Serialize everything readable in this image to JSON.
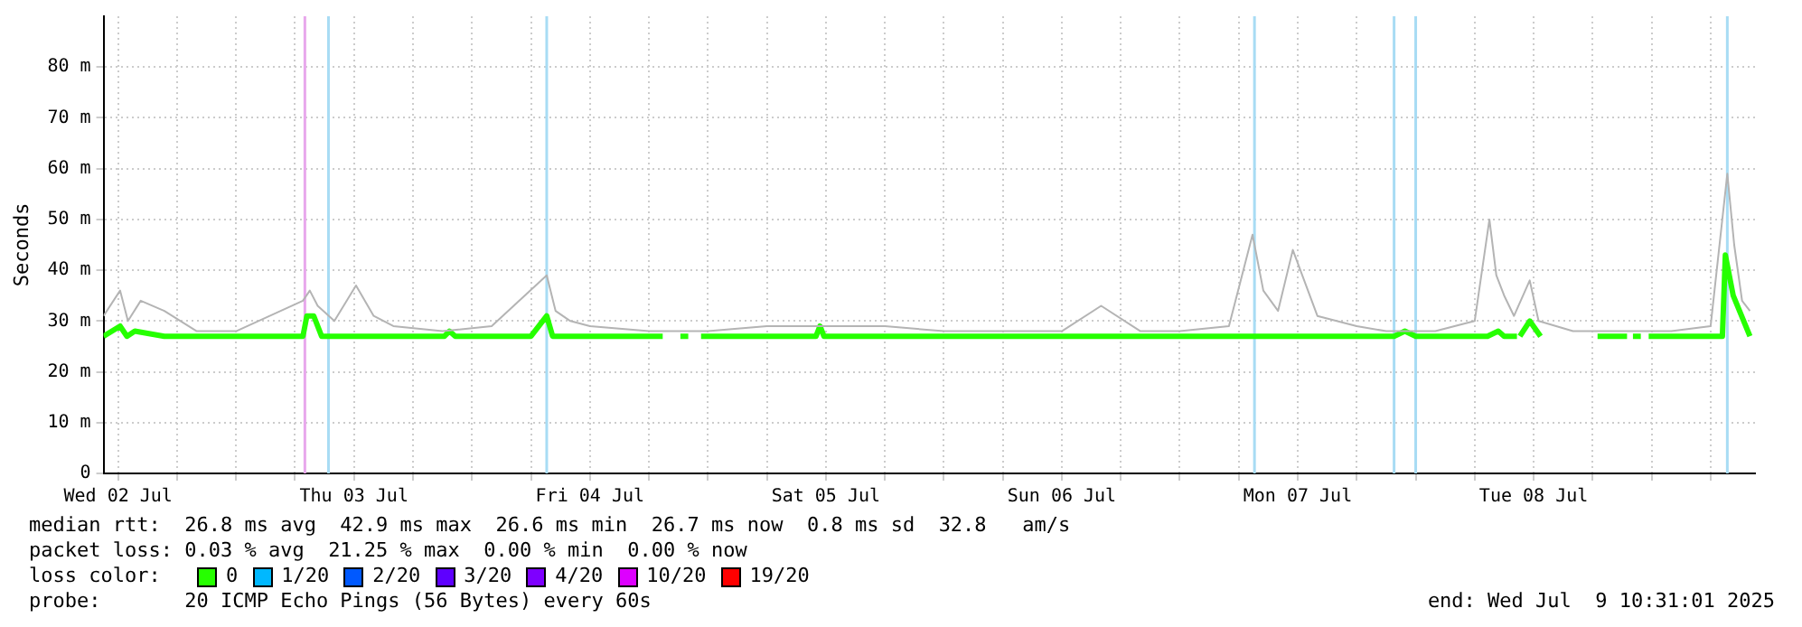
{
  "chart_data": {
    "type": "line",
    "ylabel": "Seconds",
    "xlim": [
      "2025-07-02T10:31",
      "2025-07-09T10:31"
    ],
    "ylim": [
      0,
      90
    ],
    "xticks": [
      {
        "value": "2025-07-02T12:00",
        "label": "Wed 02 Jul"
      },
      {
        "value": "2025-07-02T18:00",
        "label": null
      },
      {
        "value": "2025-07-03T00:00",
        "label": null
      },
      {
        "value": "2025-07-03T06:00",
        "label": null
      },
      {
        "value": "2025-07-03T12:00",
        "label": "Thu 03 Jul"
      },
      {
        "value": "2025-07-03T18:00",
        "label": null
      },
      {
        "value": "2025-07-04T00:00",
        "label": null
      },
      {
        "value": "2025-07-04T06:00",
        "label": null
      },
      {
        "value": "2025-07-04T12:00",
        "label": "Fri 04 Jul"
      },
      {
        "value": "2025-07-04T18:00",
        "label": null
      },
      {
        "value": "2025-07-05T00:00",
        "label": null
      },
      {
        "value": "2025-07-05T06:00",
        "label": null
      },
      {
        "value": "2025-07-05T12:00",
        "label": "Sat 05 Jul"
      },
      {
        "value": "2025-07-05T18:00",
        "label": null
      },
      {
        "value": "2025-07-06T00:00",
        "label": null
      },
      {
        "value": "2025-07-06T06:00",
        "label": null
      },
      {
        "value": "2025-07-06T12:00",
        "label": "Sun 06 Jul"
      },
      {
        "value": "2025-07-06T18:00",
        "label": null
      },
      {
        "value": "2025-07-07T00:00",
        "label": null
      },
      {
        "value": "2025-07-07T06:00",
        "label": null
      },
      {
        "value": "2025-07-07T12:00",
        "label": "Mon 07 Jul"
      },
      {
        "value": "2025-07-07T18:00",
        "label": null
      },
      {
        "value": "2025-07-08T00:00",
        "label": null
      },
      {
        "value": "2025-07-08T06:00",
        "label": null
      },
      {
        "value": "2025-07-08T12:00",
        "label": "Tue 08 Jul"
      },
      {
        "value": "2025-07-08T18:00",
        "label": null
      },
      {
        "value": "2025-07-09T00:00",
        "label": null
      },
      {
        "value": "2025-07-09T06:00",
        "label": null
      }
    ],
    "yticks": [
      0,
      {
        "value": 10,
        "label": "10 m"
      },
      {
        "value": 20,
        "label": "20 m"
      },
      {
        "value": 30,
        "label": "30 m"
      },
      {
        "value": 40,
        "label": "40 m"
      },
      {
        "value": 50,
        "label": "50 m"
      },
      {
        "value": 60,
        "label": "60 m"
      },
      {
        "value": 70,
        "label": "70 m"
      },
      {
        "value": 80,
        "label": "80 m"
      }
    ],
    "grid": true,
    "legend": "bottom",
    "legend_title": "loss color:",
    "marker": "none",
    "line_style": "solid",
    "series": [
      {
        "name": "0",
        "color": "#26ff00",
        "x": [
          "2025-07-02T10:31",
          "2025-07-02T12:12",
          "2025-07-02T12:54",
          "2025-07-02T13:42",
          "2025-07-02T16:42",
          "2025-07-03T06:48",
          "2025-07-03T07:12",
          "2025-07-03T07:54",
          "2025-07-03T08:42",
          "2025-07-03T12:12",
          "2025-07-03T21:12",
          "2025-07-03T21:42",
          "2025-07-03T22:18",
          "2025-07-04T06:00",
          "2025-07-04T07:36",
          "2025-07-04T08:12",
          "2025-07-04T15:18",
          "2025-07-04T19:24",
          "2025-07-04T20:00",
          "2025-07-04T21:12",
          "2025-07-04T22:00",
          "2025-07-04T22:30",
          "2025-07-04T23:18",
          "2025-07-05T04:18",
          "2025-07-05T11:00",
          "2025-07-05T11:24",
          "2025-07-05T11:48",
          "2025-07-05T22:54",
          "2025-07-06T13:54",
          "2025-07-07T07:12",
          "2025-07-07T08:30",
          "2025-07-07T19:42",
          "2025-07-07T21:48",
          "2025-07-07T22:54",
          "2025-07-08T00:00",
          "2025-07-08T03:12",
          "2025-07-08T07:18",
          "2025-07-08T08:24",
          "2025-07-08T09:00",
          "2025-07-08T10:18",
          "2025-07-08T10:30",
          "2025-07-08T10:36",
          "2025-07-08T11:36",
          "2025-07-08T12:42",
          "2025-07-08T13:00",
          "2025-07-08T18:30",
          "2025-07-08T21:30",
          "2025-07-08T21:45",
          "2025-07-08T22:06",
          "2025-07-08T22:54",
          "2025-07-08T23:20",
          "2025-07-08T23:42",
          "2025-07-09T07:12",
          "2025-07-09T07:30",
          "2025-07-09T08:18",
          "2025-07-09T10:00"
        ],
        "values": [
          27,
          29,
          27,
          28,
          27,
          27,
          31,
          31,
          27,
          27,
          27,
          28,
          27,
          27,
          31,
          27,
          27,
          27,
          null,
          27,
          27,
          null,
          27,
          27,
          27,
          29,
          27,
          27,
          27,
          27,
          27,
          27,
          27,
          28,
          27,
          27,
          27,
          28,
          27,
          27,
          null,
          27,
          30,
          27,
          null,
          27,
          27,
          null,
          27,
          27,
          null,
          27,
          27,
          43,
          35,
          27
        ]
      },
      {
        "color": "#b4b4b4",
        "x": [
          "2025-07-02T10:31",
          "2025-07-02T12:12",
          "2025-07-02T13:00",
          "2025-07-02T14:18",
          "2025-07-02T16:42",
          "2025-07-02T20:00",
          "2025-07-03T00:00",
          "2025-07-03T06:48",
          "2025-07-03T07:30",
          "2025-07-03T08:18",
          "2025-07-03T10:00",
          "2025-07-03T12:12",
          "2025-07-03T14:00",
          "2025-07-03T16:00",
          "2025-07-03T21:00",
          "2025-07-04T02:00",
          "2025-07-04T07:36",
          "2025-07-04T08:30",
          "2025-07-04T10:00",
          "2025-07-04T12:00",
          "2025-07-04T18:00",
          "2025-07-05T00:00",
          "2025-07-05T06:00",
          "2025-07-05T12:00",
          "2025-07-05T18:00",
          "2025-07-06T00:00",
          "2025-07-06T06:00",
          "2025-07-06T12:00",
          "2025-07-06T16:00",
          "2025-07-06T20:00",
          "2025-07-07T00:00",
          "2025-07-07T05:00",
          "2025-07-07T07:24",
          "2025-07-07T08:30",
          "2025-07-07T10:00",
          "2025-07-07T11:30",
          "2025-07-07T14:00",
          "2025-07-07T18:00",
          "2025-07-07T21:00",
          "2025-07-08T02:00",
          "2025-07-08T06:00",
          "2025-07-08T07:30",
          "2025-07-08T08:12",
          "2025-07-08T09:00",
          "2025-07-08T10:00",
          "2025-07-08T11:36",
          "2025-07-08T12:30",
          "2025-07-08T16:00",
          "2025-07-08T21:00",
          "2025-07-09T02:00",
          "2025-07-09T06:00",
          "2025-07-09T07:42",
          "2025-07-09T08:24",
          "2025-07-09T09:12",
          "2025-07-09T10:00"
        ],
        "values": [
          31,
          36,
          30,
          34,
          32,
          28,
          28,
          34,
          36,
          33,
          30,
          37,
          31,
          29,
          28,
          29,
          39,
          32,
          30,
          29,
          28,
          28,
          29,
          29,
          29,
          28,
          28,
          28,
          33,
          28,
          28,
          29,
          47,
          36,
          32,
          44,
          31,
          29,
          28,
          28,
          30,
          50,
          39,
          35,
          31,
          38,
          30,
          28,
          28,
          28,
          29,
          59,
          45,
          34,
          32
        ]
      },
      {
        "name": "1/20",
        "color": "#00b8ff"
      },
      {
        "name": "2/20",
        "color": "#0059ff"
      },
      {
        "name": "3/20",
        "color": "#5e00ff"
      },
      {
        "name": "4/20",
        "color": "#7e00ff"
      },
      {
        "name": "10/20",
        "color": "#dd00ff"
      },
      {
        "name": "19/20",
        "color": "#ff0000"
      }
    ],
    "ref_lines": [
      {
        "axis": "x",
        "value": "2025-07-03T07:00",
        "color": "#e8a8ec"
      },
      {
        "axis": "x",
        "value": "2025-07-03T09:24",
        "color": "#a8dcf4"
      },
      {
        "axis": "x",
        "value": "2025-07-04T07:36",
        "color": "#a8dcf4"
      },
      {
        "axis": "x",
        "value": "2025-07-07T07:36",
        "color": "#a8dcf4"
      },
      {
        "axis": "x",
        "value": "2025-07-07T21:48",
        "color": "#a8dcf4"
      },
      {
        "axis": "x",
        "value": "2025-07-08T00:00",
        "color": "#a8dcf4"
      },
      {
        "axis": "x",
        "value": "2025-07-09T07:42",
        "color": "#a8dcf4"
      }
    ],
    "annotations": [
      "median rtt:  26.8 ms avg  42.9 ms max  26.6 ms min  26.7 ms now  0.8 ms sd  32.8   am/s",
      "packet loss: 0.03 % avg  21.25 % max  0.00 % min  0.00 % now",
      "probe:       20 ICMP Echo Pings (56 Bytes) every 60s",
      "end: Wed Jul  9 10:31:01 2025"
    ]
  }
}
